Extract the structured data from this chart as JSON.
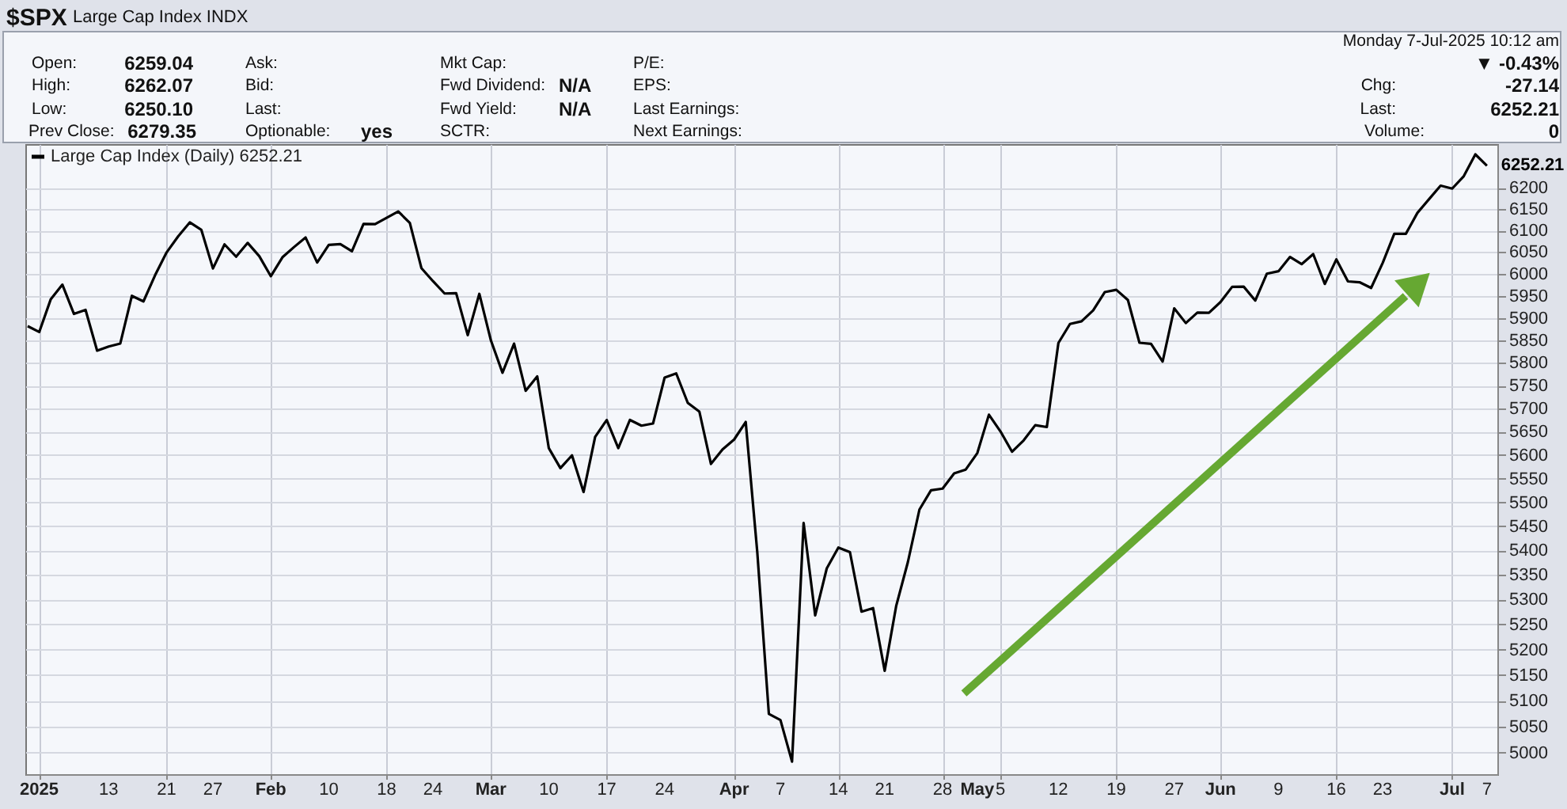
{
  "chart_data": {
    "type": "line",
    "title": "$SPX",
    "subtitle": "Large Cap Index INDX",
    "categories": [
      null,
      "2025",
      null,
      null,
      null,
      null,
      null,
      "13",
      null,
      null,
      null,
      null,
      "21",
      null,
      null,
      null,
      "27",
      null,
      null,
      null,
      null,
      "Feb",
      null,
      null,
      null,
      null,
      "10",
      null,
      null,
      null,
      null,
      "18",
      null,
      null,
      null,
      "24",
      null,
      null,
      null,
      null,
      "Mar",
      null,
      null,
      null,
      null,
      "10",
      null,
      null,
      null,
      null,
      "17",
      null,
      null,
      null,
      null,
      "24",
      null,
      null,
      null,
      null,
      null,
      "Apr",
      null,
      null,
      null,
      "7",
      null,
      null,
      null,
      null,
      "14",
      null,
      null,
      null,
      "21",
      null,
      null,
      null,
      null,
      "28",
      null,
      null,
      "May",
      null,
      "5",
      null,
      null,
      null,
      null,
      "12",
      null,
      null,
      null,
      null,
      "19",
      null,
      null,
      null,
      null,
      "27",
      null,
      null,
      null,
      "Jun",
      null,
      null,
      null,
      null,
      "9",
      null,
      null,
      null,
      null,
      "16",
      null,
      null,
      null,
      "23",
      null,
      null,
      null,
      null,
      null,
      "Jul",
      null,
      null,
      "7"
    ],
    "series": [
      {
        "name": "Large Cap Index (Daily) 6252.21",
        "color": "#000000",
        "values": [
          5881.63,
          5868.55,
          5942.47,
          5975.38,
          5909.03,
          5918.25,
          5827.04,
          5836.22,
          5842.91,
          5949.91,
          5937.34,
          5996.66,
          6049.24,
          6086.37,
          6118.71,
          6101.24,
          6012.28,
          6067.7,
          6039.31,
          6071.17,
          6040.53,
          5994.57,
          6037.88,
          6061.48,
          6083.57,
          6025.99,
          6066.44,
          6068.5,
          6051.97,
          6115.07,
          6114.63,
          6129.58,
          6144.15,
          6117.52,
          6013.13,
          5983.25,
          5955.25,
          5956.06,
          5861.57,
          5954.5,
          5849.72,
          5778.15,
          5842.63,
          5738.52,
          5770.2,
          5614.56,
          5572.07,
          5599.3,
          5521.52,
          5638.94,
          5675.12,
          5614.66,
          5675.29,
          5662.89,
          5667.56,
          5767.57,
          5776.65,
          5712.2,
          5693.31,
          5580.94,
          5611.85,
          5633.07,
          5670.97,
          5396.52,
          5074.08,
          5062.25,
          4982.77,
          5456.9,
          5268.05,
          5363.36,
          5405.97,
          5396.63,
          5275.7,
          5282.7,
          5158.2,
          5287.76,
          5375.86,
          5484.77,
          5525.21,
          5528.75,
          5560.83,
          5569.06,
          5604.14,
          5686.67,
          5650.38,
          5606.91,
          5631.28,
          5663.94,
          5659.91,
          5844.19,
          5886.55,
          5892.58,
          5916.93,
          5958.38,
          5963.6,
          5940.46,
          5844.61,
          5842.01,
          5802.82,
          5921.54,
          5888.55,
          5912.17,
          5911.69,
          5935.94,
          5970.37,
          5970.81,
          5939.3,
          6000.36,
          6005.88,
          6038.81,
          6022.24,
          6045.26,
          5976.97,
          6033.11,
          5982.72,
          5980.87,
          5967.84,
          6025.17,
          6092.18,
          6092.16,
          6141.02,
          6173.07,
          6204.95,
          6198.01,
          6227.42,
          6279.35,
          6252.21
        ]
      }
    ],
    "ylim": [
      4959,
      6304
    ],
    "yticks": [
      5000,
      5050,
      5100,
      5150,
      5200,
      5250,
      5300,
      5350,
      5400,
      5450,
      5500,
      5550,
      5600,
      5650,
      5700,
      5750,
      5800,
      5850,
      5900,
      5950,
      6000,
      6050,
      6100,
      6150,
      6200
    ],
    "log": "y",
    "grid": true,
    "legend": "top left",
    "annotations": [
      "Open:",
      "6259.04",
      "High:",
      "6262.07",
      "Low:",
      "6250.10",
      "Prev Close:",
      "6279.35",
      "Ask:",
      "Bid:",
      "Last:",
      "Optionable:",
      "yes",
      "Mkt Cap:",
      "Fwd Dividend:",
      "N/A",
      "Fwd Yield:",
      "N/A",
      "SCTR:",
      "P/E:",
      "EPS:",
      "Last Earnings:",
      "Next Earnings:",
      "Monday  7-Jul-2025  10:12 am",
      "▼ -0.43%",
      "Chg:",
      "-27.14",
      "Last:",
      "6252.21",
      "Volume:",
      "0",
      "6252.21"
    ]
  }
}
